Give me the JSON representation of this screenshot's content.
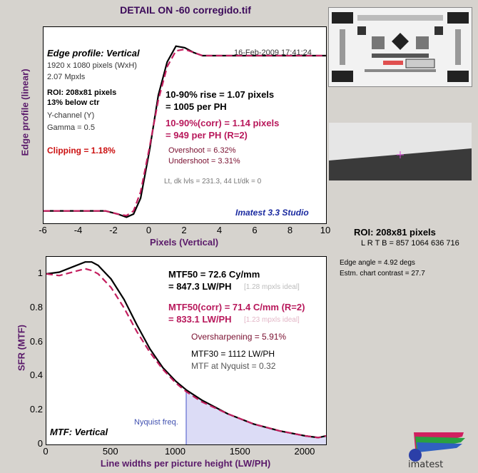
{
  "title": "DETAIL ON -60 corregido.tif",
  "top": {
    "panel_label": "Edge profile: Vertical",
    "date": "16-Feb-2009 17:41:24",
    "pixels": "1920 x 1080 pixels (WxH)",
    "mpxls": "2.07 Mpxls",
    "roi": "ROI: 208x81 pixels",
    "below_ctr": "13% below ctr",
    "channel": "Y-channel (Y)",
    "gamma": "Gamma = 0.5",
    "clipping": "Clipping = 1.18%",
    "rise1": "10-90% rise = 1.07 pixels",
    "rise2": "= 1005 per PH",
    "corr1": "10-90%(corr) = 1.14 pixels",
    "corr2": "= 949 per PH  (R=2)",
    "overshoot": "Overshoot = 6.32%",
    "undershoot": "Undershoot = 3.31%",
    "lvls": "Lt, dk lvls = 231.3, 44   Lt/dk = 0",
    "brand": "Imatest 3.3 Studio",
    "ylabel": "Edge profile (linear)",
    "xlabel": "Pixels (Vertical)"
  },
  "bottom": {
    "panel_label": "MTF: Vertical",
    "mtf50a": "MTF50 = 72.6 Cy/mm",
    "mtf50b": "= 847.3 LW/PH",
    "ideal1": "[1.28 mpxls ideal]",
    "mtfc1": "MTF50(corr) = 71.4 C/mm  (R=2)",
    "mtfc2": "= 833.1 LW/PH",
    "ideal2": "[1.23 mpxls ideal]",
    "oversharp": "Oversharpening = 5.91%",
    "mtf30": "MTF30 = 1112 LW/PH",
    "nyq_text": "MTF at Nyquist = 0.32",
    "nyq_label": "Nyquist freq.",
    "ylabel": "SFR (MTF)",
    "xlabel": "Line widths per picture height (LW/PH)"
  },
  "side": {
    "roi": "ROI:  208x81 pixels",
    "lrtb": "L R  T B = 857 1064  636 716",
    "edge_angle": "Edge angle = 4.92 degs",
    "contrast": "Estm. chart contrast = 27.7",
    "logo_text": "imatest"
  },
  "chart_data": [
    {
      "type": "line",
      "title": "Edge profile: Vertical",
      "xlabel": "Pixels (Vertical)",
      "ylabel": "Edge profile (linear)",
      "xlim": [
        -6,
        10
      ],
      "xticks": [
        -6,
        -4,
        -2,
        0,
        2,
        4,
        6,
        8,
        10
      ],
      "series": [
        {
          "color": "#000000",
          "x": [
            -6,
            -2.5,
            -1.8,
            -1.3,
            -0.9,
            -0.5,
            0,
            0.5,
            1.0,
            1.5,
            2.0,
            2.5,
            3.0,
            4,
            6,
            10
          ],
          "y": [
            0.02,
            0.02,
            0.0,
            -0.02,
            0.0,
            0.1,
            0.4,
            0.75,
            0.96,
            1.06,
            1.05,
            1.02,
            1.0,
            1.0,
            1.0,
            1.0
          ]
        },
        {
          "color": "#c41f5f",
          "x": [
            -6,
            -2.5,
            -1.8,
            -1.3,
            -0.9,
            -0.5,
            0,
            0.5,
            1.0,
            1.5,
            2.0,
            2.5,
            3.0,
            4,
            6,
            10
          ],
          "y": [
            0.02,
            0.02,
            0.0,
            -0.01,
            0.02,
            0.14,
            0.42,
            0.72,
            0.93,
            1.03,
            1.04,
            1.02,
            1.0,
            1.0,
            1.0,
            1.0
          ]
        }
      ]
    },
    {
      "type": "line",
      "title": "MTF: Vertical",
      "xlabel": "Line widths per picture height (LW/PH)",
      "ylabel": "SFR (MTF)",
      "xlim": [
        0,
        2160
      ],
      "ylim": [
        0,
        1.1
      ],
      "xticks": [
        0,
        500,
        1000,
        1500,
        2000
      ],
      "yticks": [
        0,
        0.2,
        0.4,
        0.6,
        0.8,
        1
      ],
      "nyquist": 1080,
      "series": [
        {
          "color": "#000000",
          "x": [
            0,
            100,
            200,
            300,
            350,
            400,
            500,
            600,
            700,
            800,
            900,
            1000,
            1080,
            1200,
            1400,
            1600,
            1800,
            2000,
            2100,
            2160
          ],
          "y": [
            1.0,
            1.01,
            1.04,
            1.07,
            1.07,
            1.05,
            0.97,
            0.85,
            0.7,
            0.56,
            0.45,
            0.37,
            0.32,
            0.26,
            0.18,
            0.12,
            0.08,
            0.05,
            0.04,
            0.05
          ]
        },
        {
          "color": "#c41f5f",
          "x": [
            0,
            100,
            200,
            300,
            350,
            400,
            500,
            600,
            700,
            800,
            900,
            1000,
            1080,
            1200,
            1400,
            1600,
            1800,
            2000,
            2100,
            2160
          ],
          "y": [
            1.0,
            0.99,
            1.01,
            1.03,
            1.02,
            1.0,
            0.92,
            0.8,
            0.66,
            0.54,
            0.44,
            0.36,
            0.31,
            0.25,
            0.18,
            0.12,
            0.08,
            0.05,
            0.04,
            0.05
          ]
        }
      ]
    }
  ]
}
